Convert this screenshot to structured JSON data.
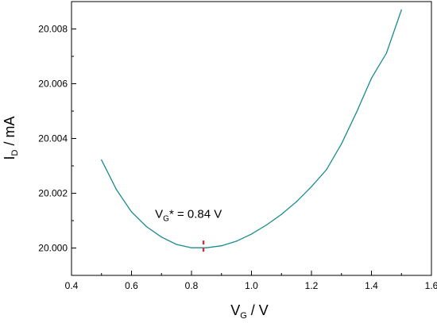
{
  "chart_data": {
    "type": "line",
    "xlabel_main": "V",
    "xlabel_sub": "G",
    "xlabel_unit": " / V",
    "ylabel_main": "I",
    "ylabel_sub": "D",
    "ylabel_unit": " / mA",
    "xlim": [
      0.4,
      1.6
    ],
    "ylim": [
      19.999,
      20.009
    ],
    "xticks": [
      0.4,
      0.6,
      0.8,
      1.0,
      1.2,
      1.4,
      1.6
    ],
    "xtick_labels": [
      "0.4",
      "0.6",
      "0.8",
      "1.0",
      "1.2",
      "1.4",
      "1.6"
    ],
    "yticks": [
      20.0,
      20.002,
      20.004,
      20.006,
      20.008
    ],
    "ytick_labels": [
      "20.000",
      "20.002",
      "20.004",
      "20.006",
      "20.008"
    ],
    "grid": false,
    "line_color": "#1a8c8c",
    "marker_color": "#e8202a",
    "series": [
      {
        "x": [
          0.5,
          0.55,
          0.6,
          0.65,
          0.7,
          0.75,
          0.8,
          0.85,
          0.9,
          0.95,
          1.0,
          1.05,
          1.1,
          1.15,
          1.2,
          1.25,
          1.3,
          1.35,
          1.4,
          1.45,
          1.5
        ],
        "y": [
          20.00322,
          20.00213,
          20.00132,
          20.00078,
          20.0004,
          20.00013,
          20.00001,
          20.00001,
          20.00008,
          20.00025,
          20.00051,
          20.00084,
          20.00123,
          20.00169,
          20.00224,
          20.00286,
          20.0038,
          20.00495,
          20.0062,
          20.00712,
          20.0087
        ]
      }
    ],
    "annotation": {
      "prefix": "V",
      "sub": "G",
      "suffix": "* = 0.84 V",
      "x": 0.84,
      "marker_y_range": [
        19.99975,
        20.00027
      ],
      "label_anchor_x": 0.79,
      "label_anchor_y": 20.0011
    }
  }
}
